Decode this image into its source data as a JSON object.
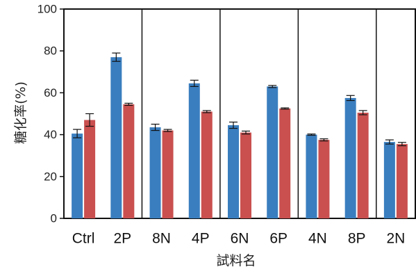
{
  "chart_data": {
    "type": "bar",
    "title": "",
    "xlabel": "試料名",
    "ylabel": "糖化率(%)",
    "ylim": [
      0,
      100
    ],
    "yticks": [
      "0",
      "20",
      "40",
      "60",
      "80",
      "100"
    ],
    "grid": false,
    "legend": "none",
    "categories": [
      "Ctrl",
      "2P",
      "8N",
      "4P",
      "6N",
      "6P",
      "4N",
      "8P",
      "2N"
    ],
    "group_separators_after": [
      1,
      3,
      5,
      7
    ],
    "series": [
      {
        "color": "#3a7ebf",
        "values": [
          40.5,
          77.0,
          43.5,
          64.5,
          44.5,
          63.0,
          40.0,
          57.5,
          36.5
        ],
        "errors": [
          2.0,
          2.0,
          1.5,
          1.5,
          1.5,
          0.5,
          0.3,
          1.2,
          1.0
        ]
      },
      {
        "color": "#c9504f",
        "values": [
          47.0,
          54.5,
          42.0,
          51.0,
          41.0,
          52.5,
          37.5,
          50.5,
          35.5
        ],
        "errors": [
          3.0,
          0.5,
          0.5,
          0.5,
          0.7,
          0.3,
          0.5,
          1.0,
          0.8
        ]
      }
    ]
  }
}
